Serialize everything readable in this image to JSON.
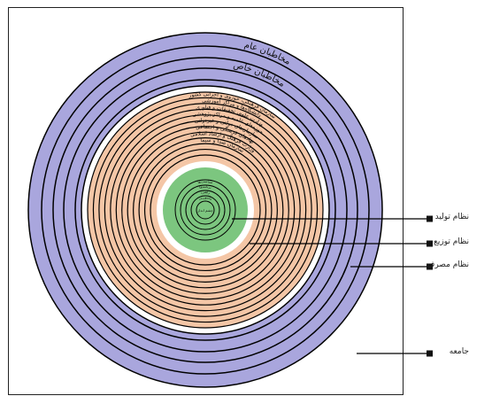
{
  "colors": {
    "outer_rings": "#a9a6dd",
    "middle_rings": "#f4c6a6",
    "inner_rings": "#7cc67f",
    "ring_line": "#000000",
    "gap": "#ffffff"
  },
  "outer_labels": [
    "مخاطبان عام",
    "مخاطبان خاص"
  ],
  "middle_labels": [
    "سازمان فرهنگی، حوزوی و اجرایی کشور",
    "دانشگاه‌ها و مراکز آموزشی",
    "وزارت علوم، تحقیقات و فناوری",
    "حوزه‌های علمیه و مراکز پژوهشی",
    "سازمان‌های دولتی و غیردولتی",
    "نهادهای فرهنگی و اجتماعی",
    "وزارت فرهنگ و ارشاد اسلامی",
    "سازمان صدا و سیما"
  ],
  "inner_labels": [
    "سیاست‌ها",
    "برنامه‌ها",
    "راهبرد",
    "مأموریت"
  ],
  "center_label": "چشم انداز",
  "legend": [
    {
      "label": "نظام تولید",
      "target": "inner"
    },
    {
      "label": "نظام توزیع",
      "target": "middle"
    },
    {
      "label": "نظام مصرف",
      "target": "outer"
    },
    {
      "label": "جامعه",
      "target": "frame"
    }
  ]
}
